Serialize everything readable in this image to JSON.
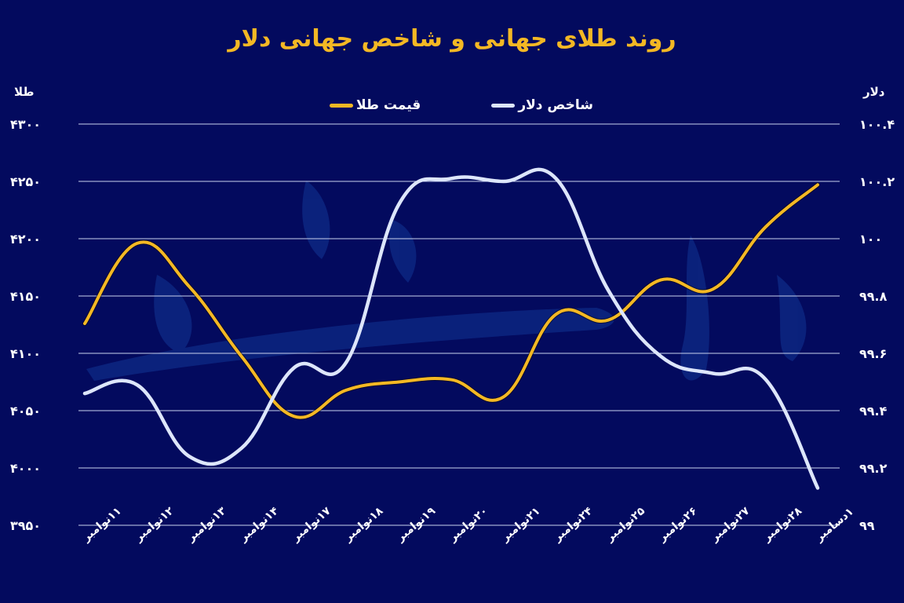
{
  "title": "روند طلای جهانی و شاخص جهانی دلار",
  "colors": {
    "background": "#030a5e",
    "title": "#f4b824",
    "gold_line": "#f4b824",
    "dollar_line": "#dde6fb",
    "grid": "#c9d1ee"
  },
  "legend": {
    "dollar": "شاخص دلار",
    "gold": "قیمت طلا"
  },
  "left_axis_title": "طلا",
  "right_axis_title": "دلار",
  "left_ticks": [
    "۴۳۰۰",
    "۴۲۵۰",
    "۴۲۰۰",
    "۴۱۵۰",
    "۴۱۰۰",
    "۴۰۵۰",
    "۴۰۰۰",
    "۳۹۵۰"
  ],
  "right_ticks": [
    "۱۰۰.۴",
    "۱۰۰.۲",
    "۱۰۰",
    "۹۹.۸",
    "۹۹.۶",
    "۹۹.۴",
    "۹۹.۲",
    "۹۹"
  ],
  "x_labels": [
    "۱۱نوامبر",
    "۱۲نوامبر",
    "۱۳نوامبر",
    "۱۴نوامبر",
    "۱۷نوامبر",
    "۱۸نوامبر",
    "۱۹نوامبر",
    "۲۰نوامبر",
    "۲۱نوامبر",
    "۲۴نوامبر",
    "۲۵نوامبر",
    "۲۶نوامبر",
    "۲۷نوامبر",
    "۲۸نوامبر",
    "۱دسامبر"
  ],
  "chart_data": {
    "type": "line",
    "title": "روند طلای جهانی و شاخص جهانی دلار",
    "categories": [
      "11 Nov",
      "12 Nov",
      "13 Nov",
      "14 Nov",
      "17 Nov",
      "18 Nov",
      "19 Nov",
      "20 Nov",
      "21 Nov",
      "24 Nov",
      "25 Nov",
      "26 Nov",
      "27 Nov",
      "28 Nov",
      "1 Dec"
    ],
    "series": [
      {
        "name": "قیمت طلا",
        "axis": "left",
        "color": "#f4b824",
        "values": [
          4126,
          4196,
          4158,
          4097,
          4045,
          4068,
          4075,
          4077,
          4062,
          4134,
          4129,
          4164,
          4156,
          4210,
          4247
        ]
      },
      {
        "name": "شاخص دلار",
        "axis": "right",
        "color": "#dde6fb",
        "values": [
          99.46,
          99.49,
          99.24,
          99.27,
          99.55,
          99.57,
          100.12,
          100.21,
          100.2,
          100.21,
          99.82,
          99.59,
          99.53,
          99.51,
          99.13
        ]
      }
    ],
    "ylabel_left": "طلا",
    "ylabel_right": "دلار",
    "ylim_left": [
      3950,
      4300
    ],
    "ylim_right": [
      99,
      100.4
    ],
    "grid": true,
    "legend_position": "top"
  }
}
